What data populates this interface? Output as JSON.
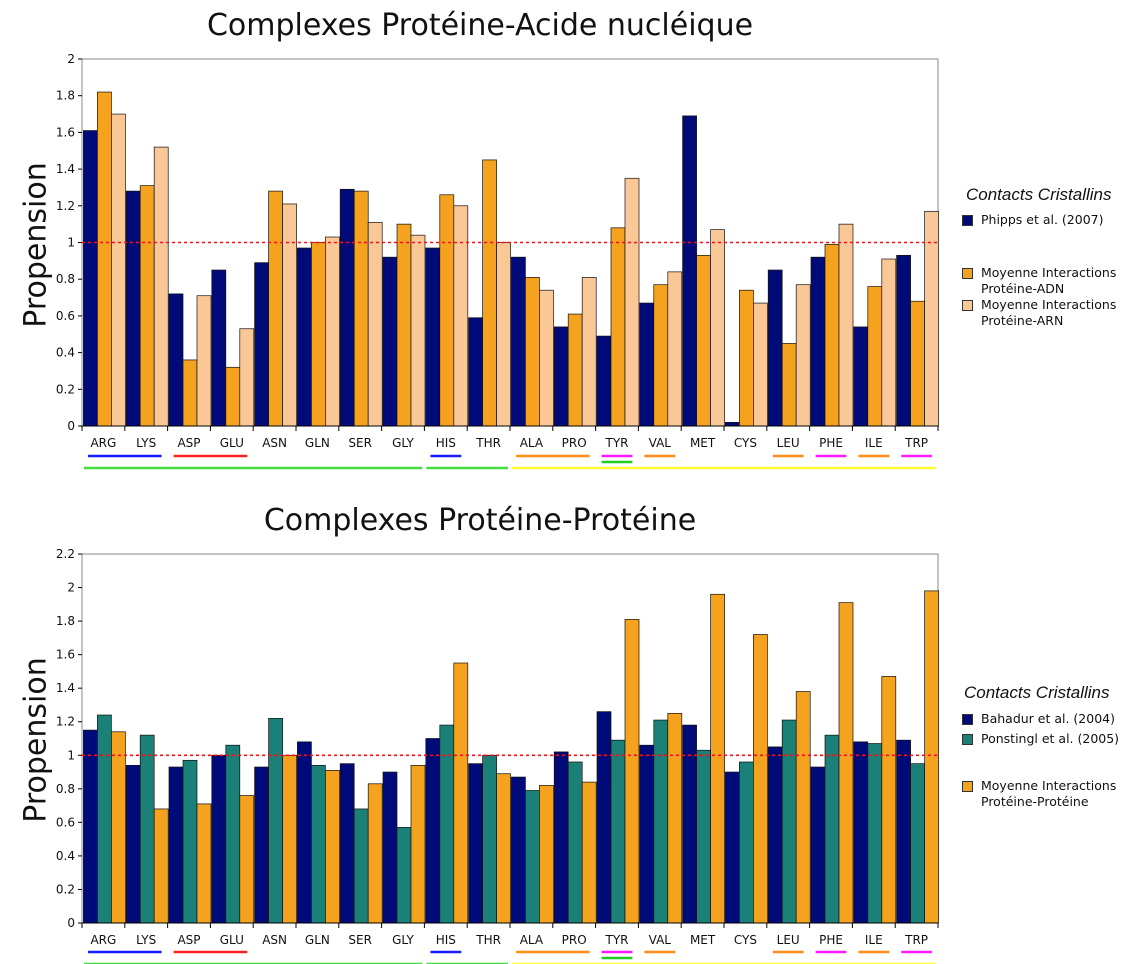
{
  "chart_data": [
    {
      "type": "bar",
      "title": "Complexes Protéine-Acide nucléique",
      "ylabel": "Propension",
      "ylim": [
        0,
        2
      ],
      "yticks": [
        "0",
        "0.2",
        "0.4",
        "0.6",
        "0.8",
        "1",
        "1.2",
        "1.4",
        "1.6",
        "1.8",
        "2"
      ],
      "reference_line": 1,
      "categories": [
        "ARG",
        "LYS",
        "ASP",
        "GLU",
        "ASN",
        "GLN",
        "SER",
        "GLY",
        "HIS",
        "THR",
        "ALA",
        "PRO",
        "TYR",
        "VAL",
        "MET",
        "CYS",
        "LEU",
        "PHE",
        "ILE",
        "TRP"
      ],
      "legend_title": "Contacts Cristallins",
      "series": [
        {
          "name": "Phipps et al. (2007)",
          "color": "#000a78",
          "values": [
            1.61,
            1.28,
            0.72,
            0.85,
            0.89,
            0.97,
            1.29,
            0.92,
            0.97,
            0.59,
            0.92,
            0.54,
            0.49,
            0.67,
            1.69,
            0.02,
            0.85,
            0.92,
            0.54,
            0.93
          ]
        },
        {
          "name": "Moyenne Interactions\nProtéine-ADN",
          "color": "#f5a21e",
          "values": [
            1.82,
            1.31,
            0.36,
            0.32,
            1.28,
            1.0,
            1.28,
            1.1,
            1.26,
            1.45,
            0.81,
            0.61,
            1.08,
            0.77,
            0.93,
            0.74,
            0.45,
            0.99,
            0.76,
            0.68
          ]
        },
        {
          "name": "Moyenne Interactions\nProtéine-ARN",
          "color": "#fac896",
          "values": [
            1.7,
            1.52,
            0.71,
            0.53,
            1.21,
            1.03,
            1.11,
            1.04,
            1.2,
            1.0,
            0.74,
            0.81,
            1.35,
            0.84,
            1.07,
            0.67,
            0.77,
            1.1,
            0.91,
            1.17
          ]
        }
      ],
      "groupings": [
        {
          "color": "#1a1aff",
          "row": 1,
          "categories": [
            "ARG",
            "LYS"
          ]
        },
        {
          "color": "#ff2020",
          "row": 1,
          "categories": [
            "ASP",
            "GLU"
          ]
        },
        {
          "color": "#1a1aff",
          "row": 1,
          "categories": [
            "HIS"
          ]
        },
        {
          "color": "#ff8c1a",
          "row": 1,
          "categories": [
            "ALA",
            "PRO"
          ]
        },
        {
          "color": "#ff1aff",
          "row": 1,
          "categories": [
            "TYR"
          ]
        },
        {
          "color": "#ff8c1a",
          "row": 1,
          "categories": [
            "VAL"
          ]
        },
        {
          "color": "#ff8c1a",
          "row": 1,
          "categories": [
            "LEU"
          ]
        },
        {
          "color": "#ff1aff",
          "row": 1,
          "categories": [
            "PHE"
          ]
        },
        {
          "color": "#ff8c1a",
          "row": 1,
          "categories": [
            "ILE"
          ]
        },
        {
          "color": "#ff1aff",
          "row": 1,
          "categories": [
            "TRP"
          ]
        },
        {
          "color": "#22cc22",
          "row": 2,
          "categories": [
            "TYR"
          ]
        },
        {
          "color": "#44dd44",
          "row": 3,
          "categories": [
            "ARG",
            "LYS",
            "ASP",
            "GLU",
            "ASN",
            "GLN",
            "SER",
            "GLY"
          ]
        },
        {
          "color": "#44dd44",
          "row": 3,
          "categories": [
            "HIS",
            "THR"
          ]
        },
        {
          "color": "#ffff33",
          "row": 3,
          "categories": [
            "ALA",
            "PRO",
            "TYR",
            "VAL",
            "MET",
            "CYS",
            "LEU",
            "PHE",
            "ILE",
            "TRP"
          ]
        }
      ]
    },
    {
      "type": "bar",
      "title": "Complexes Protéine-Protéine",
      "ylabel": "Propension",
      "ylim": [
        0,
        2.2
      ],
      "yticks": [
        "0",
        "0.2",
        "0.4",
        "0.6",
        "0.8",
        "1",
        "1.2",
        "1.4",
        "1.6",
        "1.8",
        "2",
        "2.2"
      ],
      "reference_line": 1,
      "categories": [
        "ARG",
        "LYS",
        "ASP",
        "GLU",
        "ASN",
        "GLN",
        "SER",
        "GLY",
        "HIS",
        "THR",
        "ALA",
        "PRO",
        "TYR",
        "VAL",
        "MET",
        "CYS",
        "LEU",
        "PHE",
        "ILE",
        "TRP"
      ],
      "legend_title": "Contacts Cristallins",
      "series": [
        {
          "name": "Bahadur et al. (2004)",
          "color": "#000a78",
          "values": [
            1.15,
            0.94,
            0.93,
            1.0,
            0.93,
            1.08,
            0.95,
            0.9,
            1.1,
            0.95,
            0.87,
            1.02,
            1.26,
            1.06,
            1.18,
            0.9,
            1.05,
            0.93,
            1.08,
            1.09
          ]
        },
        {
          "name": "Ponstingl et al. (2005)",
          "color": "#1a8078",
          "values": [
            1.24,
            1.12,
            0.97,
            1.06,
            1.22,
            0.94,
            0.68,
            0.57,
            1.18,
            1.0,
            0.79,
            0.96,
            1.09,
            1.21,
            1.03,
            0.96,
            1.21,
            1.12,
            1.07,
            0.95
          ]
        },
        {
          "name": "Moyenne Interactions\nProtéine-Protéine",
          "color": "#f5a21e",
          "values": [
            1.14,
            0.68,
            0.71,
            0.76,
            1.0,
            0.91,
            0.83,
            0.94,
            1.55,
            0.89,
            0.82,
            0.84,
            1.81,
            1.25,
            1.96,
            1.72,
            1.38,
            1.91,
            1.47,
            1.98
          ]
        }
      ],
      "groupings": [
        {
          "color": "#1a1aff",
          "row": 1,
          "categories": [
            "ARG",
            "LYS"
          ]
        },
        {
          "color": "#ff2020",
          "row": 1,
          "categories": [
            "ASP",
            "GLU"
          ]
        },
        {
          "color": "#1a1aff",
          "row": 1,
          "categories": [
            "HIS"
          ]
        },
        {
          "color": "#ff8c1a",
          "row": 1,
          "categories": [
            "ALA",
            "PRO"
          ]
        },
        {
          "color": "#ff1aff",
          "row": 1,
          "categories": [
            "TYR"
          ]
        },
        {
          "color": "#ff8c1a",
          "row": 1,
          "categories": [
            "VAL"
          ]
        },
        {
          "color": "#ff8c1a",
          "row": 1,
          "categories": [
            "LEU"
          ]
        },
        {
          "color": "#ff1aff",
          "row": 1,
          "categories": [
            "PHE"
          ]
        },
        {
          "color": "#ff8c1a",
          "row": 1,
          "categories": [
            "ILE"
          ]
        },
        {
          "color": "#ff1aff",
          "row": 1,
          "categories": [
            "TRP"
          ]
        },
        {
          "color": "#22cc22",
          "row": 2,
          "categories": [
            "TYR"
          ]
        },
        {
          "color": "#44dd44",
          "row": 3,
          "categories": [
            "ARG",
            "LYS",
            "ASP",
            "GLU",
            "ASN",
            "GLN",
            "SER",
            "GLY"
          ]
        },
        {
          "color": "#44dd44",
          "row": 3,
          "categories": [
            "HIS",
            "THR"
          ]
        },
        {
          "color": "#ffff33",
          "row": 3,
          "categories": [
            "ALA",
            "PRO",
            "TYR",
            "VAL",
            "MET",
            "CYS",
            "LEU",
            "PHE",
            "ILE",
            "TRP"
          ]
        }
      ]
    }
  ]
}
